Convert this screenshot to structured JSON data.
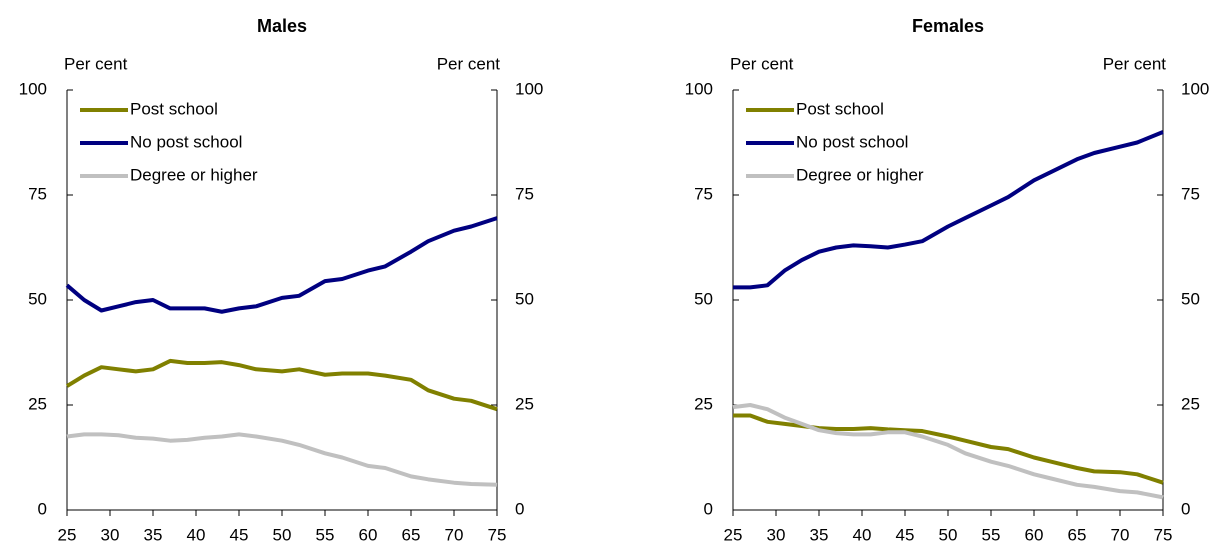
{
  "chart_data": [
    {
      "type": "line",
      "title": "Males",
      "ylabel": "Per cent",
      "y2label": "Per cent",
      "x": [
        25,
        27,
        29,
        31,
        33,
        35,
        37,
        39,
        41,
        43,
        45,
        47,
        50,
        52,
        55,
        57,
        60,
        62,
        65,
        67,
        70,
        72,
        75
      ],
      "series": [
        {
          "name": "Post school",
          "color": "#808000",
          "values": [
            29.5,
            32,
            34,
            33.5,
            33,
            33.5,
            35.5,
            35,
            35,
            35.2,
            34.5,
            33.5,
            33,
            33.5,
            32.2,
            32.5,
            32.5,
            32,
            31,
            28.5,
            26.5,
            26,
            24
          ]
        },
        {
          "name": "No post school",
          "color": "#000080",
          "values": [
            53.5,
            50,
            47.5,
            48.5,
            49.5,
            50,
            48,
            48,
            48,
            47.2,
            48,
            48.5,
            50.5,
            51,
            54.5,
            55,
            57,
            58,
            61.5,
            64,
            66.5,
            67.5,
            69.5
          ]
        },
        {
          "name": "Degree or higher",
          "color": "#c0c0c0",
          "values": [
            17.5,
            18,
            18,
            17.8,
            17.2,
            17,
            16.5,
            16.7,
            17.2,
            17.5,
            18,
            17.5,
            16.5,
            15.5,
            13.5,
            12.5,
            10.5,
            10,
            8,
            7.3,
            6.5,
            6.2,
            6
          ]
        }
      ],
      "xlim": [
        25,
        75
      ],
      "xticks": [
        25,
        30,
        35,
        40,
        45,
        50,
        55,
        60,
        65,
        70,
        75
      ],
      "ylim": [
        0,
        100
      ],
      "yticks": [
        0,
        25,
        50,
        75,
        100
      ],
      "y2lim": [
        0,
        100
      ],
      "y2ticks": [
        0,
        25,
        50,
        75,
        100
      ],
      "legend": "top-left",
      "grid": false
    },
    {
      "type": "line",
      "title": "Females",
      "ylabel": "Per cent",
      "y2label": "Per cent",
      "x": [
        25,
        27,
        29,
        31,
        33,
        35,
        37,
        39,
        41,
        43,
        45,
        47,
        50,
        52,
        55,
        57,
        60,
        62,
        65,
        67,
        70,
        72,
        75
      ],
      "series": [
        {
          "name": "Post school",
          "color": "#808000",
          "values": [
            22.5,
            22.5,
            21,
            20.5,
            20,
            19.5,
            19.3,
            19.3,
            19.5,
            19.2,
            19,
            18.8,
            17.5,
            16.5,
            15,
            14.5,
            12.5,
            11.5,
            10,
            9.2,
            9,
            8.5,
            6.5
          ]
        },
        {
          "name": "No post school",
          "color": "#000080",
          "values": [
            53,
            53,
            53.5,
            57,
            59.5,
            61.5,
            62.5,
            63,
            62.8,
            62.5,
            63.2,
            64,
            67.5,
            69.5,
            72.5,
            74.5,
            78.5,
            80.5,
            83.5,
            85,
            86.5,
            87.5,
            90
          ]
        },
        {
          "name": "Degree or higher",
          "color": "#c0c0c0",
          "values": [
            24.5,
            25,
            24,
            22,
            20.5,
            19,
            18.3,
            18,
            18,
            18.5,
            18.5,
            17.5,
            15.5,
            13.5,
            11.5,
            10.5,
            8.5,
            7.5,
            6,
            5.5,
            4.5,
            4.2,
            3
          ]
        }
      ],
      "xlim": [
        25,
        75
      ],
      "xticks": [
        25,
        30,
        35,
        40,
        45,
        50,
        55,
        60,
        65,
        70,
        75
      ],
      "ylim": [
        0,
        100
      ],
      "yticks": [
        0,
        25,
        50,
        75,
        100
      ],
      "y2lim": [
        0,
        100
      ],
      "y2ticks": [
        0,
        25,
        50,
        75,
        100
      ],
      "legend": "top-left",
      "grid": false
    }
  ]
}
